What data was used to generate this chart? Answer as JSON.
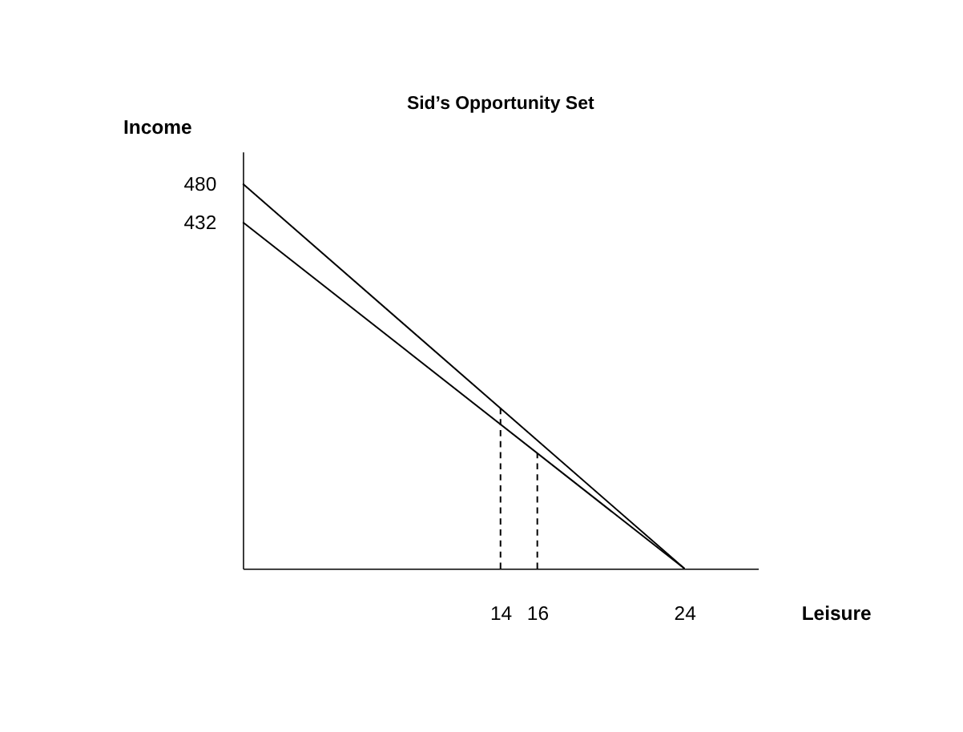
{
  "chart_data": {
    "type": "line",
    "title": "Sid’s Opportunity Set",
    "xlabel": "Leisure",
    "ylabel": "Income",
    "xlim": [
      0,
      28
    ],
    "ylim": [
      0,
      520
    ],
    "xticks": [
      14,
      16,
      24
    ],
    "yticks": [
      432,
      480
    ],
    "grid": false,
    "legend": false,
    "marker": "none",
    "series": [
      {
        "color": "#000000",
        "x": [
          0,
          24
        ],
        "values": [
          480,
          0
        ],
        "line_style": "solid"
      },
      {
        "color": "#000000",
        "x": [
          0,
          24
        ],
        "values": [
          432,
          0
        ],
        "line_style": "solid"
      },
      {
        "color": "#000000",
        "x": [
          14,
          14
        ],
        "values": [
          0,
          200
        ],
        "line_style": "dashed"
      },
      {
        "color": "#000000",
        "x": [
          16,
          16
        ],
        "values": [
          0,
          144
        ],
        "line_style": "dashed"
      }
    ]
  }
}
